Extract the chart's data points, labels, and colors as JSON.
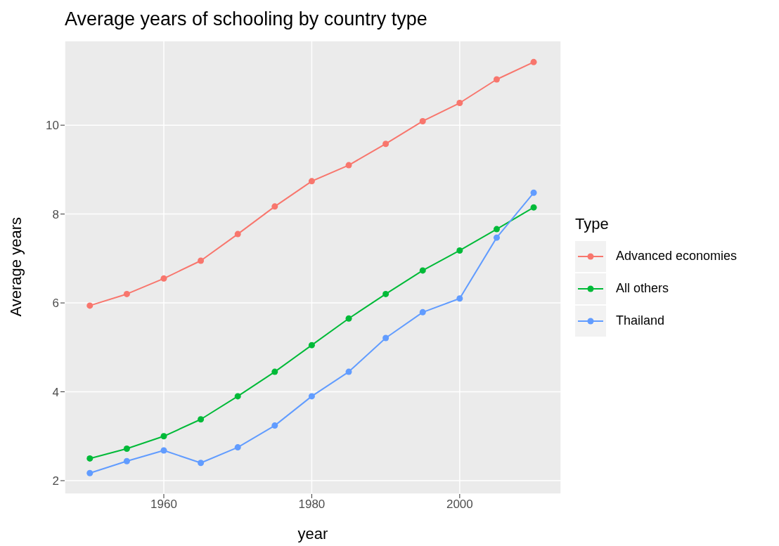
{
  "chart_data": {
    "type": "line",
    "title": "Average years of schooling by country type",
    "xlabel": "year",
    "ylabel": "Average years",
    "legend_title": "Type",
    "x": [
      1950,
      1955,
      1960,
      1965,
      1970,
      1975,
      1980,
      1985,
      1990,
      1995,
      2000,
      2005,
      2010
    ],
    "series": [
      {
        "name": "Advanced economies",
        "color": "#f8766d",
        "values": [
          5.94,
          6.2,
          6.55,
          6.95,
          7.55,
          8.17,
          8.74,
          9.1,
          9.58,
          10.09,
          10.5,
          11.03,
          11.42
        ]
      },
      {
        "name": "All others",
        "color": "#00ba38",
        "values": [
          2.5,
          2.72,
          3.0,
          3.38,
          3.9,
          4.45,
          5.05,
          5.65,
          6.2,
          6.73,
          7.18,
          7.66,
          8.15
        ]
      },
      {
        "name": "Thailand",
        "color": "#619cff",
        "values": [
          2.17,
          2.44,
          2.68,
          2.4,
          2.75,
          3.24,
          3.9,
          4.45,
          5.21,
          5.79,
          6.1,
          7.47,
          8.48
        ]
      }
    ],
    "xlim": [
      1946.6,
      2013.7
    ],
    "xticks": [
      1960,
      1980,
      2000
    ],
    "ylim": [
      1.7,
      11.9
    ],
    "yticks": [
      2,
      4,
      6,
      8,
      10
    ],
    "grid": true,
    "legend": "right",
    "marker": "circle",
    "line_style": "solid"
  }
}
